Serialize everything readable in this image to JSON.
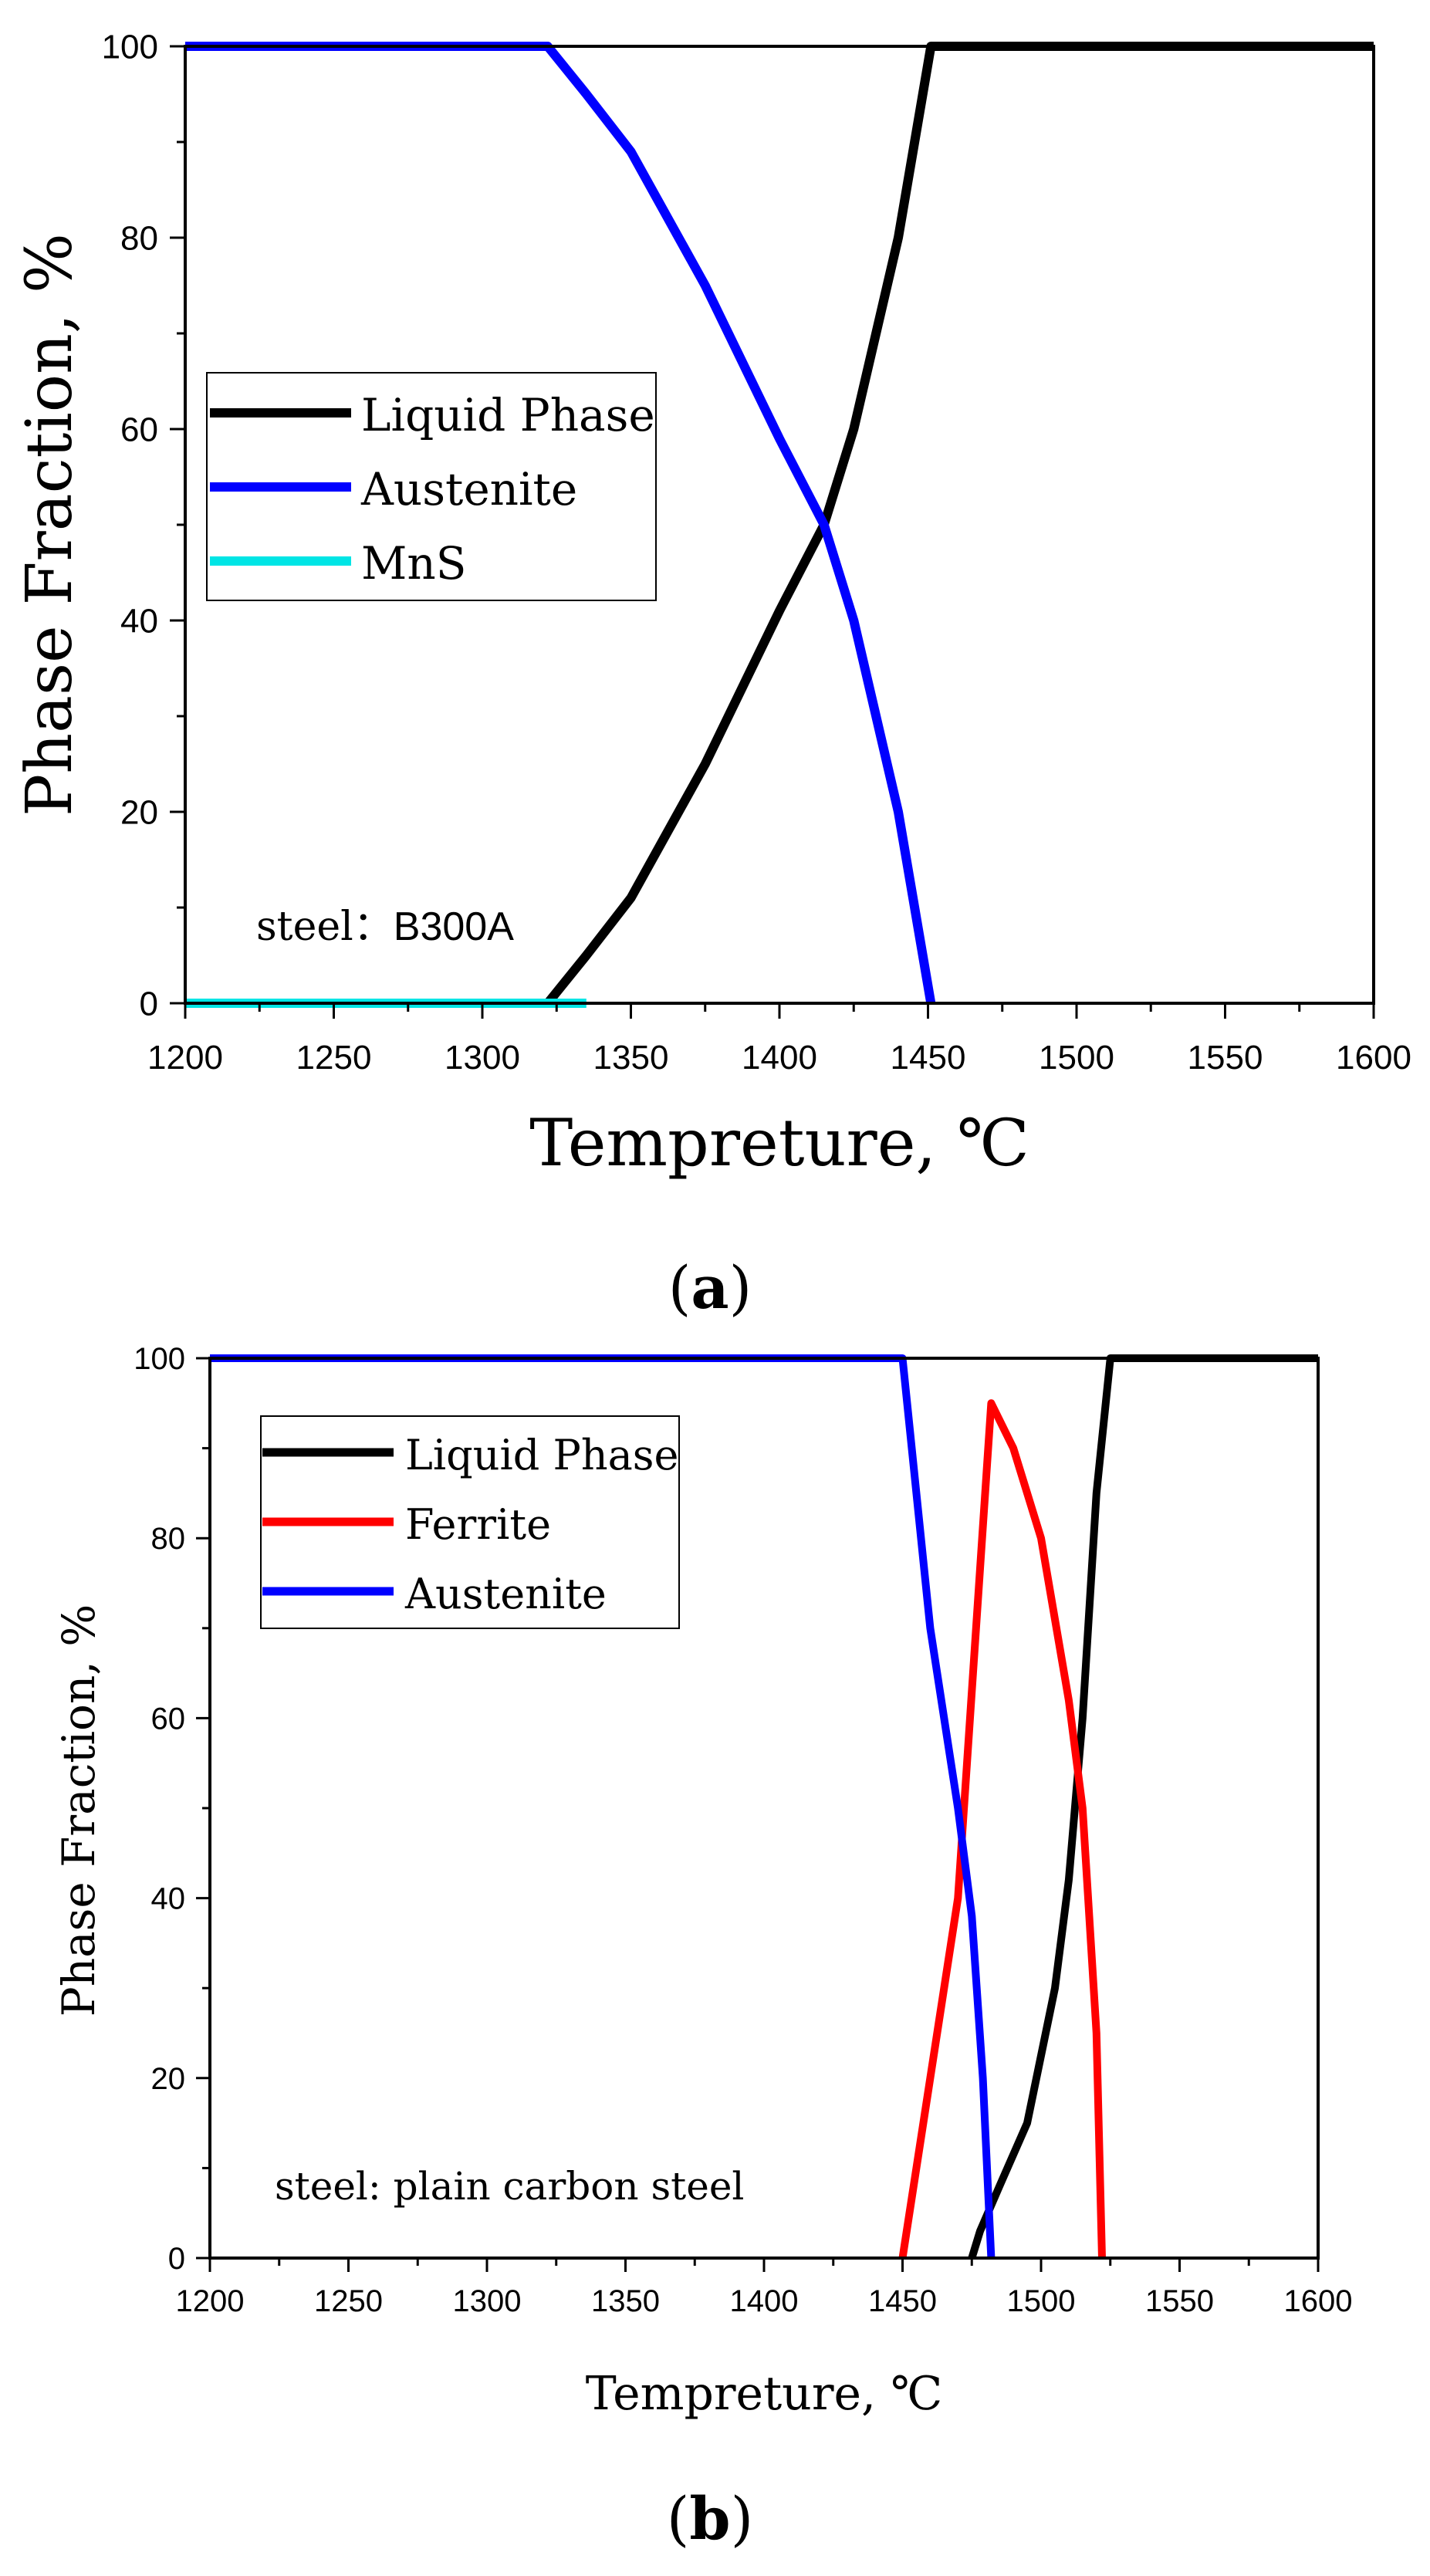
{
  "panels": [
    {
      "caption_letter": "a",
      "caption_open": "(",
      "caption_close": ")"
    },
    {
      "caption_letter": "b",
      "caption_open": "(",
      "caption_close": ")"
    }
  ],
  "chart_data": [
    {
      "type": "line",
      "title": "",
      "xlabel": "Tempreture, ℃",
      "ylabel": "Phase Fraction, %",
      "xlim": [
        1200,
        1600
      ],
      "ylim": [
        0,
        100
      ],
      "xticks": [
        1200,
        1250,
        1300,
        1350,
        1400,
        1450,
        1500,
        1550,
        1600
      ],
      "yticks": [
        0,
        20,
        40,
        60,
        80,
        100
      ],
      "legend_position": "center-left",
      "annotation_prefix": "steel：",
      "annotation_value": "B300A",
      "series": [
        {
          "name": "Liquid Phase",
          "color": "#000000",
          "x": [
            1200,
            1322,
            1335,
            1350,
            1375,
            1400,
            1415,
            1425,
            1440,
            1451,
            1600
          ],
          "y": [
            0,
            0,
            5,
            11,
            25,
            41,
            50,
            60,
            80,
            100,
            100
          ]
        },
        {
          "name": "Austenite",
          "color": "#0000ff",
          "x": [
            1200,
            1322,
            1335,
            1350,
            1375,
            1400,
            1415,
            1425,
            1440,
            1451
          ],
          "y": [
            100,
            100,
            95,
            89,
            75,
            59,
            50,
            40,
            20,
            0
          ]
        },
        {
          "name": "MnS",
          "color": "#00e5e5",
          "x": [
            1200,
            1335
          ],
          "y": [
            0,
            0
          ]
        }
      ]
    },
    {
      "type": "line",
      "title": "",
      "xlabel": "Tempreture, ℃",
      "ylabel": "Phase Fraction, %",
      "xlim": [
        1200,
        1600
      ],
      "ylim": [
        0,
        100
      ],
      "xticks": [
        1200,
        1250,
        1300,
        1350,
        1400,
        1450,
        1500,
        1550,
        1600
      ],
      "yticks": [
        0,
        20,
        40,
        60,
        80,
        100
      ],
      "legend_position": "top-left",
      "annotation": "steel: plain carbon steel",
      "series": [
        {
          "name": "Liquid Phase",
          "color": "#000000",
          "x": [
            1475,
            1478,
            1485,
            1495,
            1505,
            1510,
            1515,
            1520,
            1525,
            1600
          ],
          "y": [
            0,
            3,
            8,
            15,
            30,
            42,
            60,
            85,
            100,
            100
          ]
        },
        {
          "name": "Ferrite",
          "color": "#ff0000",
          "x": [
            1450,
            1460,
            1470,
            1475,
            1482,
            1490,
            1500,
            1510,
            1515,
            1520,
            1522
          ],
          "y": [
            0,
            20,
            40,
            63,
            95,
            90,
            80,
            62,
            50,
            25,
            0
          ]
        },
        {
          "name": "Austenite",
          "color": "#0000ff",
          "x": [
            1200,
            1450,
            1460,
            1470,
            1475,
            1479,
            1482
          ],
          "y": [
            100,
            100,
            70,
            50,
            38,
            20,
            0
          ]
        }
      ]
    }
  ]
}
